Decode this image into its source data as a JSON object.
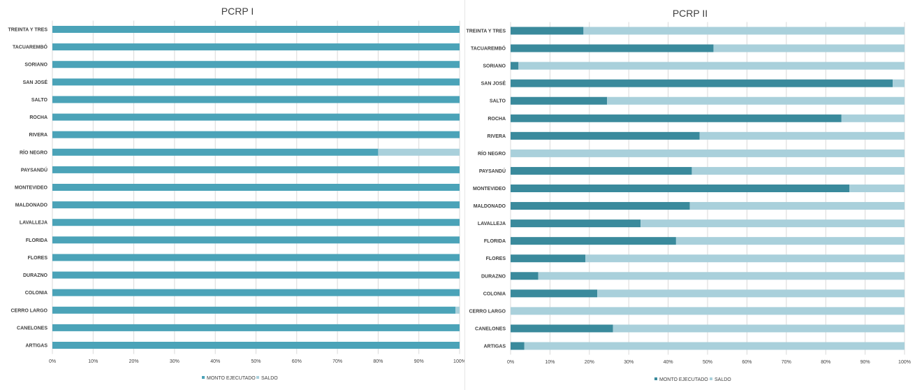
{
  "chart_data": [
    {
      "type": "bar",
      "orientation": "horizontal",
      "stacked": "percent",
      "title": "PCRP I",
      "categories": [
        "TREINTA Y TRES",
        "TACUAREMBÓ",
        "SORIANO",
        "SAN JOSÉ",
        "SALTO",
        "ROCHA",
        "RIVERA",
        "RÍO NEGRO",
        "PAYSANDÚ",
        "MONTEVIDEO",
        "MALDONADO",
        "LAVALLEJA",
        "FLORIDA",
        "FLORES",
        "DURAZNO",
        "COLONIA",
        "CERRO LARGO",
        "CANELONES",
        "ARTIGAS"
      ],
      "series": [
        {
          "name": "MONTO EJECUTADO",
          "color": "#4ba3b8",
          "values": [
            100,
            100,
            100,
            100,
            100,
            100,
            100,
            80,
            100,
            100,
            100,
            100,
            100,
            100,
            100,
            100,
            99,
            100,
            100
          ]
        },
        {
          "name": "SALDO",
          "color": "#a9d0db",
          "values": [
            0,
            0,
            0,
            0,
            0,
            0,
            0,
            20,
            0,
            0,
            0,
            0,
            0,
            0,
            0,
            0,
            1,
            0,
            0
          ]
        }
      ],
      "xticks": [
        "0%",
        "10%",
        "20%",
        "30%",
        "40%",
        "50%",
        "60%",
        "70%",
        "80%",
        "90%",
        "100%"
      ],
      "xlim": [
        0,
        100
      ],
      "grid": true,
      "legend": "bottom"
    },
    {
      "type": "bar",
      "orientation": "horizontal",
      "stacked": "percent",
      "title": "PCRP II",
      "categories": [
        "TREINTA Y TRES",
        "TACUAREMBÓ",
        "SORIANO",
        "SAN JOSÉ",
        "SALTO",
        "ROCHA",
        "RIVERA",
        "RÍO NEGRO",
        "PAYSANDÚ",
        "MONTEVIDEO",
        "MALDONADO",
        "LAVALLEJA",
        "FLORIDA",
        "FLORES",
        "DURAZNO",
        "COLONIA",
        "CERRO LARGO",
        "CANELONES",
        "ARTIGAS"
      ],
      "series": [
        {
          "name": "MONTO EJECUTADO",
          "color": "#3a8a9c",
          "values": [
            18.5,
            51.5,
            2,
            97,
            24.5,
            84,
            48,
            0,
            46,
            86,
            45.5,
            33,
            42,
            19,
            7,
            22,
            0,
            26,
            3.5
          ]
        },
        {
          "name": "SALDO",
          "color": "#a9d0db",
          "values": [
            81.5,
            48.5,
            98,
            3,
            75.5,
            16,
            52,
            100,
            54,
            14,
            54.5,
            67,
            58,
            81,
            93,
            78,
            100,
            74,
            96.5
          ]
        }
      ],
      "xticks": [
        "0%",
        "10%",
        "20%",
        "30%",
        "40%",
        "50%",
        "60%",
        "70%",
        "80%",
        "90%",
        "100%"
      ],
      "xlim": [
        0,
        100
      ],
      "grid": true,
      "legend": "bottom"
    }
  ]
}
